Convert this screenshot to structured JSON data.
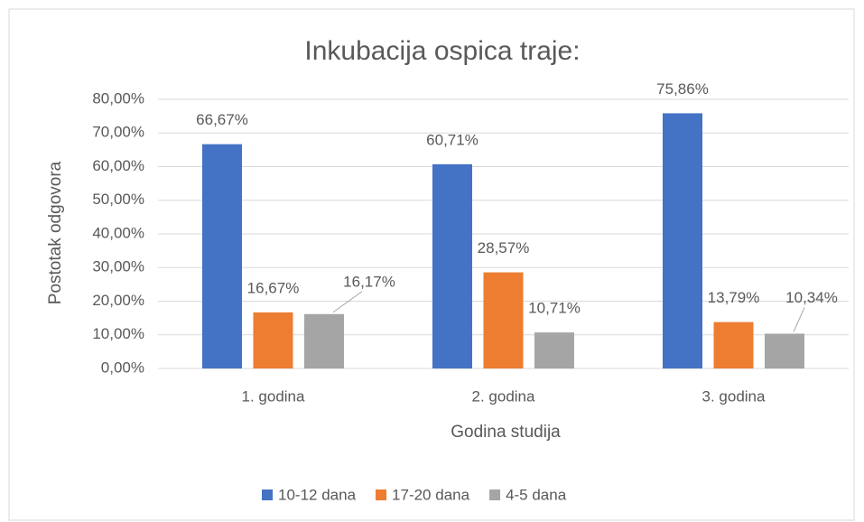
{
  "chart_data": {
    "type": "bar",
    "title": "Inkubacija ospica traje:",
    "x_label": "Godina studija",
    "y_label": "Postotak odgovora",
    "categories": [
      "1. godina",
      "2. godina",
      "3. godina"
    ],
    "series": [
      {
        "name": "10-12 dana",
        "color": "#4472c4",
        "values": [
          66.67,
          60.71,
          75.86
        ],
        "value_labels": [
          "66,67%",
          "60,71%",
          "75,86%"
        ]
      },
      {
        "name": "17-20 dana",
        "color": "#ed7d31",
        "values": [
          16.67,
          28.57,
          13.79
        ],
        "value_labels": [
          "16,67%",
          "28,57%",
          "13,79%"
        ]
      },
      {
        "name": "4-5 dana",
        "color": "#a5a5a5",
        "values": [
          16.17,
          10.71,
          10.34
        ],
        "value_labels": [
          "16,17%",
          "10,71%",
          "10,34%"
        ]
      }
    ],
    "ylim": [
      0,
      80
    ],
    "yticks": [
      {
        "value": 0,
        "label": "0,00%"
      },
      {
        "value": 10,
        "label": "10,00%"
      },
      {
        "value": 20,
        "label": "20,00%"
      },
      {
        "value": 30,
        "label": "30,00%"
      },
      {
        "value": 40,
        "label": "40,00%"
      },
      {
        "value": 50,
        "label": "50,00%"
      },
      {
        "value": 60,
        "label": "60,00%"
      },
      {
        "value": 70,
        "label": "70,00%"
      },
      {
        "value": 80,
        "label": "80,00%"
      }
    ],
    "grid": true,
    "legend": "bottom"
  }
}
